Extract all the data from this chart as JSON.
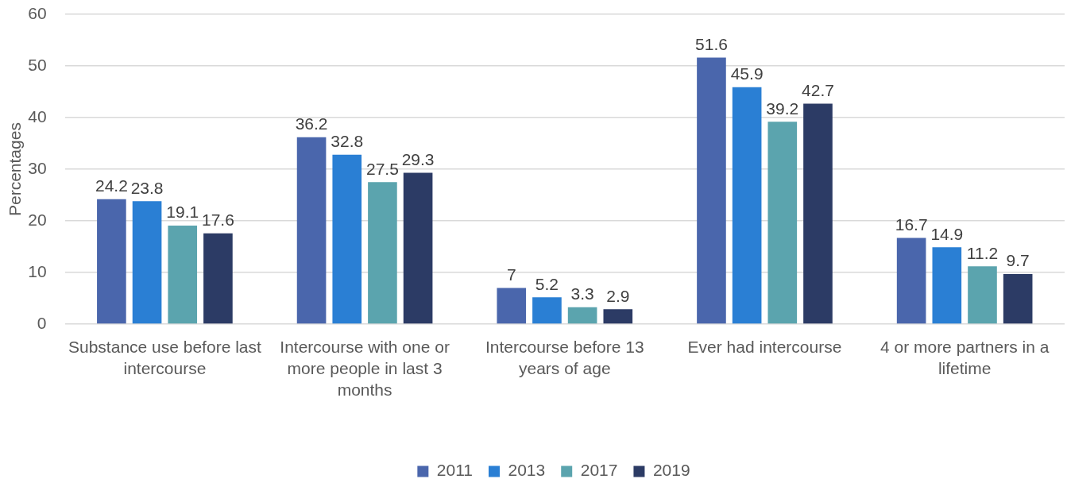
{
  "chart_data": {
    "type": "bar",
    "categories": [
      "Substance use before last intercourse",
      "Intercourse with one or more people in last 3 months",
      "Intercourse before 13 years of age",
      "Ever had intercourse",
      "4 or more partners in a lifetime"
    ],
    "series": [
      {
        "name": "2011",
        "color": "#4a66ac",
        "values": [
          24.2,
          36.2,
          7,
          51.6,
          16.7
        ]
      },
      {
        "name": "2013",
        "color": "#2a7fd4",
        "values": [
          23.8,
          32.8,
          5.2,
          45.9,
          14.9
        ]
      },
      {
        "name": "2017",
        "color": "#5ba4ae",
        "values": [
          19.1,
          27.5,
          3.3,
          39.2,
          11.2
        ]
      },
      {
        "name": "2019",
        "color": "#2c3b65",
        "values": [
          17.6,
          29.3,
          2.9,
          42.7,
          9.7
        ]
      }
    ],
    "ylabel": "Percentages",
    "ylim": [
      0,
      60
    ],
    "yticks": [
      0,
      10,
      20,
      30,
      40,
      50,
      60
    ],
    "grid": "y",
    "legend": "bottom",
    "data_labels": true
  }
}
